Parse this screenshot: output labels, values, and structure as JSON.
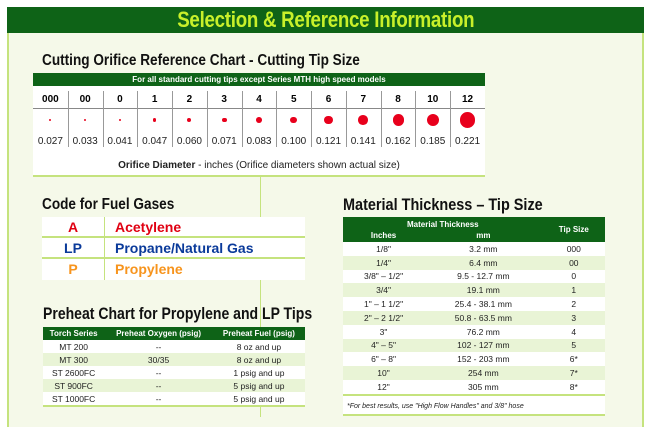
{
  "header": {
    "title": "Selection & Reference Information"
  },
  "cutting": {
    "title": "Cutting Orifice Reference Chart - Cutting Tip Size",
    "banner": "For all standard cutting tips except Series MTH high speed models",
    "tips": [
      {
        "size": "000",
        "diameter": "0.027"
      },
      {
        "size": "00",
        "diameter": "0.033"
      },
      {
        "size": "0",
        "diameter": "0.041"
      },
      {
        "size": "1",
        "diameter": "0.047"
      },
      {
        "size": "2",
        "diameter": "0.060"
      },
      {
        "size": "3",
        "diameter": "0.071"
      },
      {
        "size": "4",
        "diameter": "0.083"
      },
      {
        "size": "5",
        "diameter": "0.100"
      },
      {
        "size": "6",
        "diameter": "0.121"
      },
      {
        "size": "7",
        "diameter": "0.141"
      },
      {
        "size": "8",
        "diameter": "0.162"
      },
      {
        "size": "10",
        "diameter": "0.185"
      },
      {
        "size": "12",
        "diameter": "0.221"
      }
    ],
    "caption_bold": "Orifice Diameter",
    "caption_rest": " - inches (Orifice diameters shown actual size)",
    "dot_color": "#e8001c"
  },
  "fuel": {
    "title": "Code for Fuel Gases",
    "rows": [
      {
        "code": "A",
        "name": "Acetylene",
        "color": "#e00012"
      },
      {
        "code": "LP",
        "name": "Propane/Natural Gas",
        "color": "#0a3a9a"
      },
      {
        "code": "P",
        "name": "Propylene",
        "color": "#f7941d"
      }
    ]
  },
  "preheat": {
    "title": "Preheat Chart for Propylene and LP Tips",
    "headers": [
      "Torch Series",
      "Preheat Oxygen (psig)",
      "Preheat Fuel (psig)"
    ],
    "rows": [
      [
        "MT 200",
        "--",
        "8 oz and up"
      ],
      [
        "MT 300",
        "30/35",
        "8 oz and up"
      ],
      [
        "ST 2600FC",
        "--",
        "1 psig and up"
      ],
      [
        "ST 900FC",
        "--",
        "5 psig and up"
      ],
      [
        "ST 1000FC",
        "--",
        "5 psig and up"
      ]
    ]
  },
  "material": {
    "title": "Material Thickness – Tip Size",
    "group_header": "Material Thickness",
    "headers": [
      "Inches",
      "mm",
      "Tip Size"
    ],
    "rows": [
      [
        "1/8\"",
        "3.2 mm",
        "000"
      ],
      [
        "1/4\"",
        "6.4 mm",
        "00"
      ],
      [
        "3/8\" – 1/2\"",
        "9.5 - 12.7 mm",
        "0"
      ],
      [
        "3/4\"",
        "19.1 mm",
        "1"
      ],
      [
        "1\" – 1 1/2\"",
        "25.4 - 38.1 mm",
        "2"
      ],
      [
        "2\" – 2 1/2\"",
        "50.8 - 63.5 mm",
        "3"
      ],
      [
        "3\"",
        "76.2 mm",
        "4"
      ],
      [
        "4\" – 5\"",
        "102 - 127 mm",
        "5"
      ],
      [
        "6\" – 8\"",
        "152 - 203 mm",
        "6*"
      ],
      [
        "10\"",
        "254 mm",
        "7*"
      ],
      [
        "12\"",
        "305 mm",
        "8*"
      ]
    ],
    "note": "*For best results, use \"High Flow Handles\" and 3/8\" hose"
  },
  "colors": {
    "green": "#0e6317",
    "title_yellow": "#c8f02a",
    "accent_line": "#c5e37e"
  }
}
